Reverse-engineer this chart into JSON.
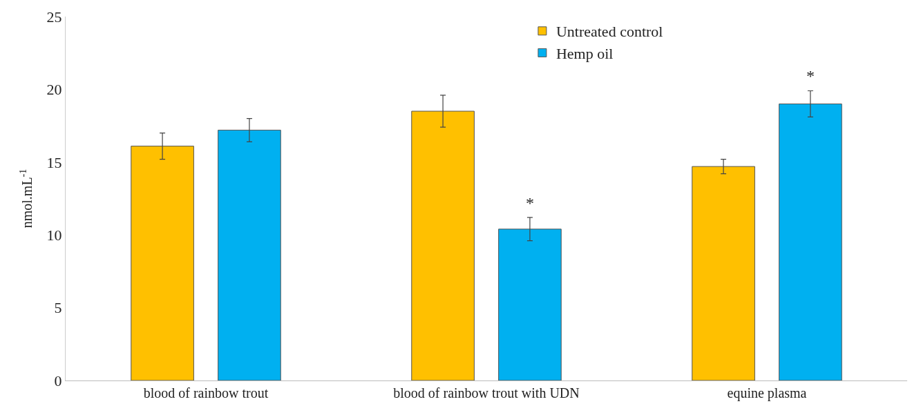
{
  "chart_data": {
    "type": "bar",
    "ylabel": "nmol.mL$^{-1}$",
    "categories": [
      "blood of rainbow trout",
      "blood of rainbow trout with UDN",
      "equine plasma"
    ],
    "series": [
      {
        "name": "Untreated control",
        "color": "#ffc000",
        "values": [
          16.1,
          18.5,
          14.7
        ],
        "errors": [
          0.9,
          1.1,
          0.5
        ]
      },
      {
        "name": "Hemp oil",
        "color": "#00b0f0",
        "values": [
          17.2,
          10.4,
          19.0
        ],
        "errors": [
          0.8,
          0.8,
          0.9
        ]
      }
    ],
    "annotations": [
      "*",
      "*"
    ],
    "ylim": [
      0,
      25
    ],
    "yticks": [
      0,
      5,
      10,
      15,
      20,
      25
    ],
    "legend": "top right"
  }
}
